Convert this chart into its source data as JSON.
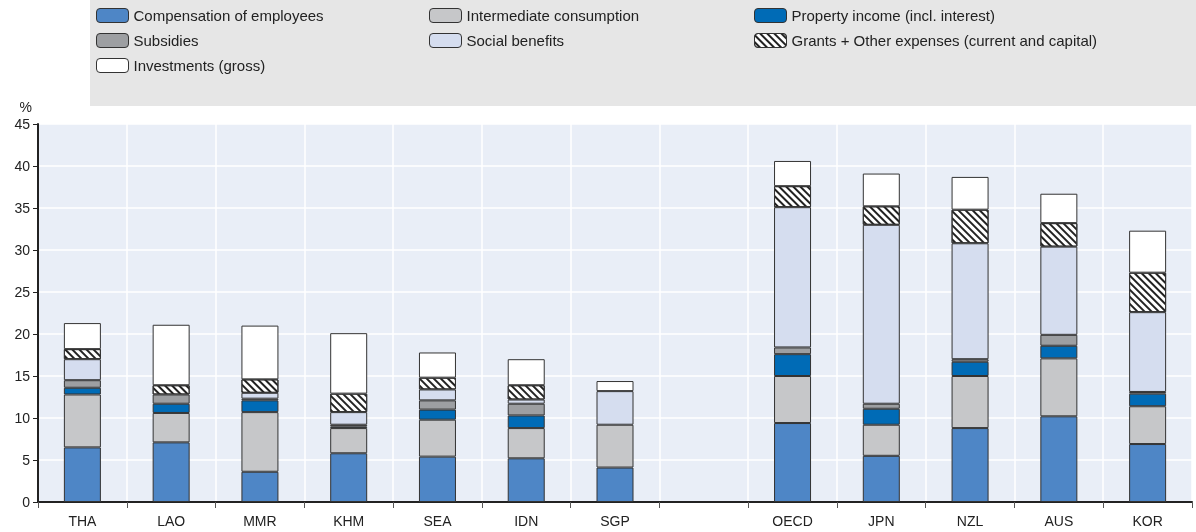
{
  "chart_data": {
    "type": "bar",
    "stacked": true,
    "ylabel": "%",
    "categories": [
      "THA",
      "LAO",
      "MMR",
      "KHM",
      "SEA",
      "IDN",
      "SGP",
      null,
      "OECD",
      "JPN",
      "NZL",
      "AUS",
      "KOR"
    ],
    "ylim": [
      0,
      45
    ],
    "yticks": [
      0,
      5,
      10,
      15,
      20,
      25,
      30,
      35,
      40,
      45
    ],
    "grid": true,
    "legend": "top",
    "series": [
      {
        "name": "Compensation of employees",
        "color": "#4e86c6",
        "values": [
          6.5,
          7.1,
          3.6,
          5.8,
          5.4,
          5.2,
          4.1,
          null,
          9.4,
          5.5,
          8.8,
          10.2,
          6.9
        ]
      },
      {
        "name": "Intermediate consumption",
        "color": "#c6c7c9",
        "values": [
          6.3,
          3.5,
          7.1,
          3.0,
          4.4,
          3.6,
          5.1,
          null,
          5.6,
          3.7,
          6.2,
          6.9,
          4.5
        ]
      },
      {
        "name": "Property income (incl. interest)",
        "color": "#006bb6",
        "values": [
          0.8,
          1.1,
          1.4,
          0.2,
          1.2,
          1.5,
          null,
          null,
          2.6,
          1.9,
          1.7,
          1.5,
          1.5
        ]
      },
      {
        "name": "Subsidies",
        "color": "#9d9fa2",
        "values": [
          0.9,
          1.1,
          0.2,
          0.2,
          1.1,
          1.4,
          null,
          null,
          0.8,
          0.6,
          0.3,
          1.3,
          0.2
        ]
      },
      {
        "name": "Social benefits",
        "color": "#d5ddef",
        "values": [
          2.5,
          null,
          0.7,
          1.5,
          1.3,
          0.5,
          4.0,
          null,
          16.7,
          21.3,
          13.8,
          10.5,
          9.5
        ]
      },
      {
        "name": "Grants + Other expenses (current and capital)",
        "color": "#ffffff",
        "values": [
          1.2,
          1.1,
          1.6,
          2.2,
          1.4,
          1.7,
          null,
          null,
          2.5,
          2.2,
          4.0,
          2.8,
          4.7
        ]
      },
      {
        "name": "Investments (gross)",
        "color": "#ffffff",
        "values": [
          3.1,
          7.2,
          6.4,
          7.2,
          3.0,
          3.1,
          1.2,
          null,
          3.0,
          3.9,
          3.9,
          3.5,
          5.0
        ]
      }
    ]
  }
}
